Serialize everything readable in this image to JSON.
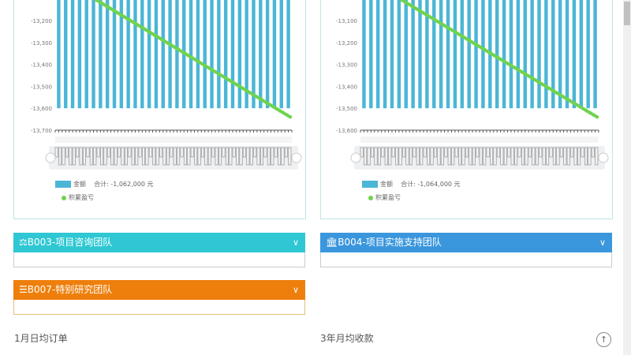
{
  "chart_data": [
    {
      "type": "bar",
      "yticks": [
        "-13,200",
        "-13,300",
        "-13,400",
        "-13,500",
        "-13,600",
        "-13,700"
      ],
      "ylim": [
        -13700,
        -13150
      ],
      "series": [
        {
          "name": "金额",
          "kind": "bar",
          "value": -13600,
          "count": 34
        },
        {
          "name": "积累盈亏",
          "kind": "line",
          "start": -13080,
          "end": -13640
        }
      ],
      "legend": {
        "bar_label": "金额",
        "total": "合计: -1,062,000 元",
        "line_label": "积累盈亏"
      },
      "legend_position": "bottom-left",
      "colors": {
        "bar": "#4bb6d6",
        "line": "#6fd34f"
      }
    },
    {
      "type": "bar",
      "yticks": [
        "-13,100",
        "-13,200",
        "-13,300",
        "-13,400",
        "-13,500",
        "-13,600"
      ],
      "ylim": [
        -13600,
        -13050
      ],
      "series": [
        {
          "name": "金额",
          "kind": "bar",
          "value": -13500,
          "count": 34
        },
        {
          "name": "积累盈亏",
          "kind": "line",
          "start": -12980,
          "end": -13540
        }
      ],
      "legend": {
        "bar_label": "金额",
        "total": "合计: -1,064,000 元",
        "line_label": "积累盈亏"
      },
      "legend_position": "bottom-left",
      "colors": {
        "bar": "#4bb6d6",
        "line": "#6fd34f"
      }
    }
  ],
  "cards": [
    {
      "title": "B003-项目咨询团队",
      "icon": "balance-scale-icon",
      "color": "#2ec7d3"
    },
    {
      "title": "B004-项目实施支持团队",
      "icon": "bank-icon",
      "color": "#3a96dd"
    },
    {
      "title": "B007-特别研究团队",
      "icon": "list-icon",
      "color": "#ee7f0c"
    }
  ],
  "sections": {
    "left": "1月日均订单",
    "right": "3年月均收款"
  }
}
